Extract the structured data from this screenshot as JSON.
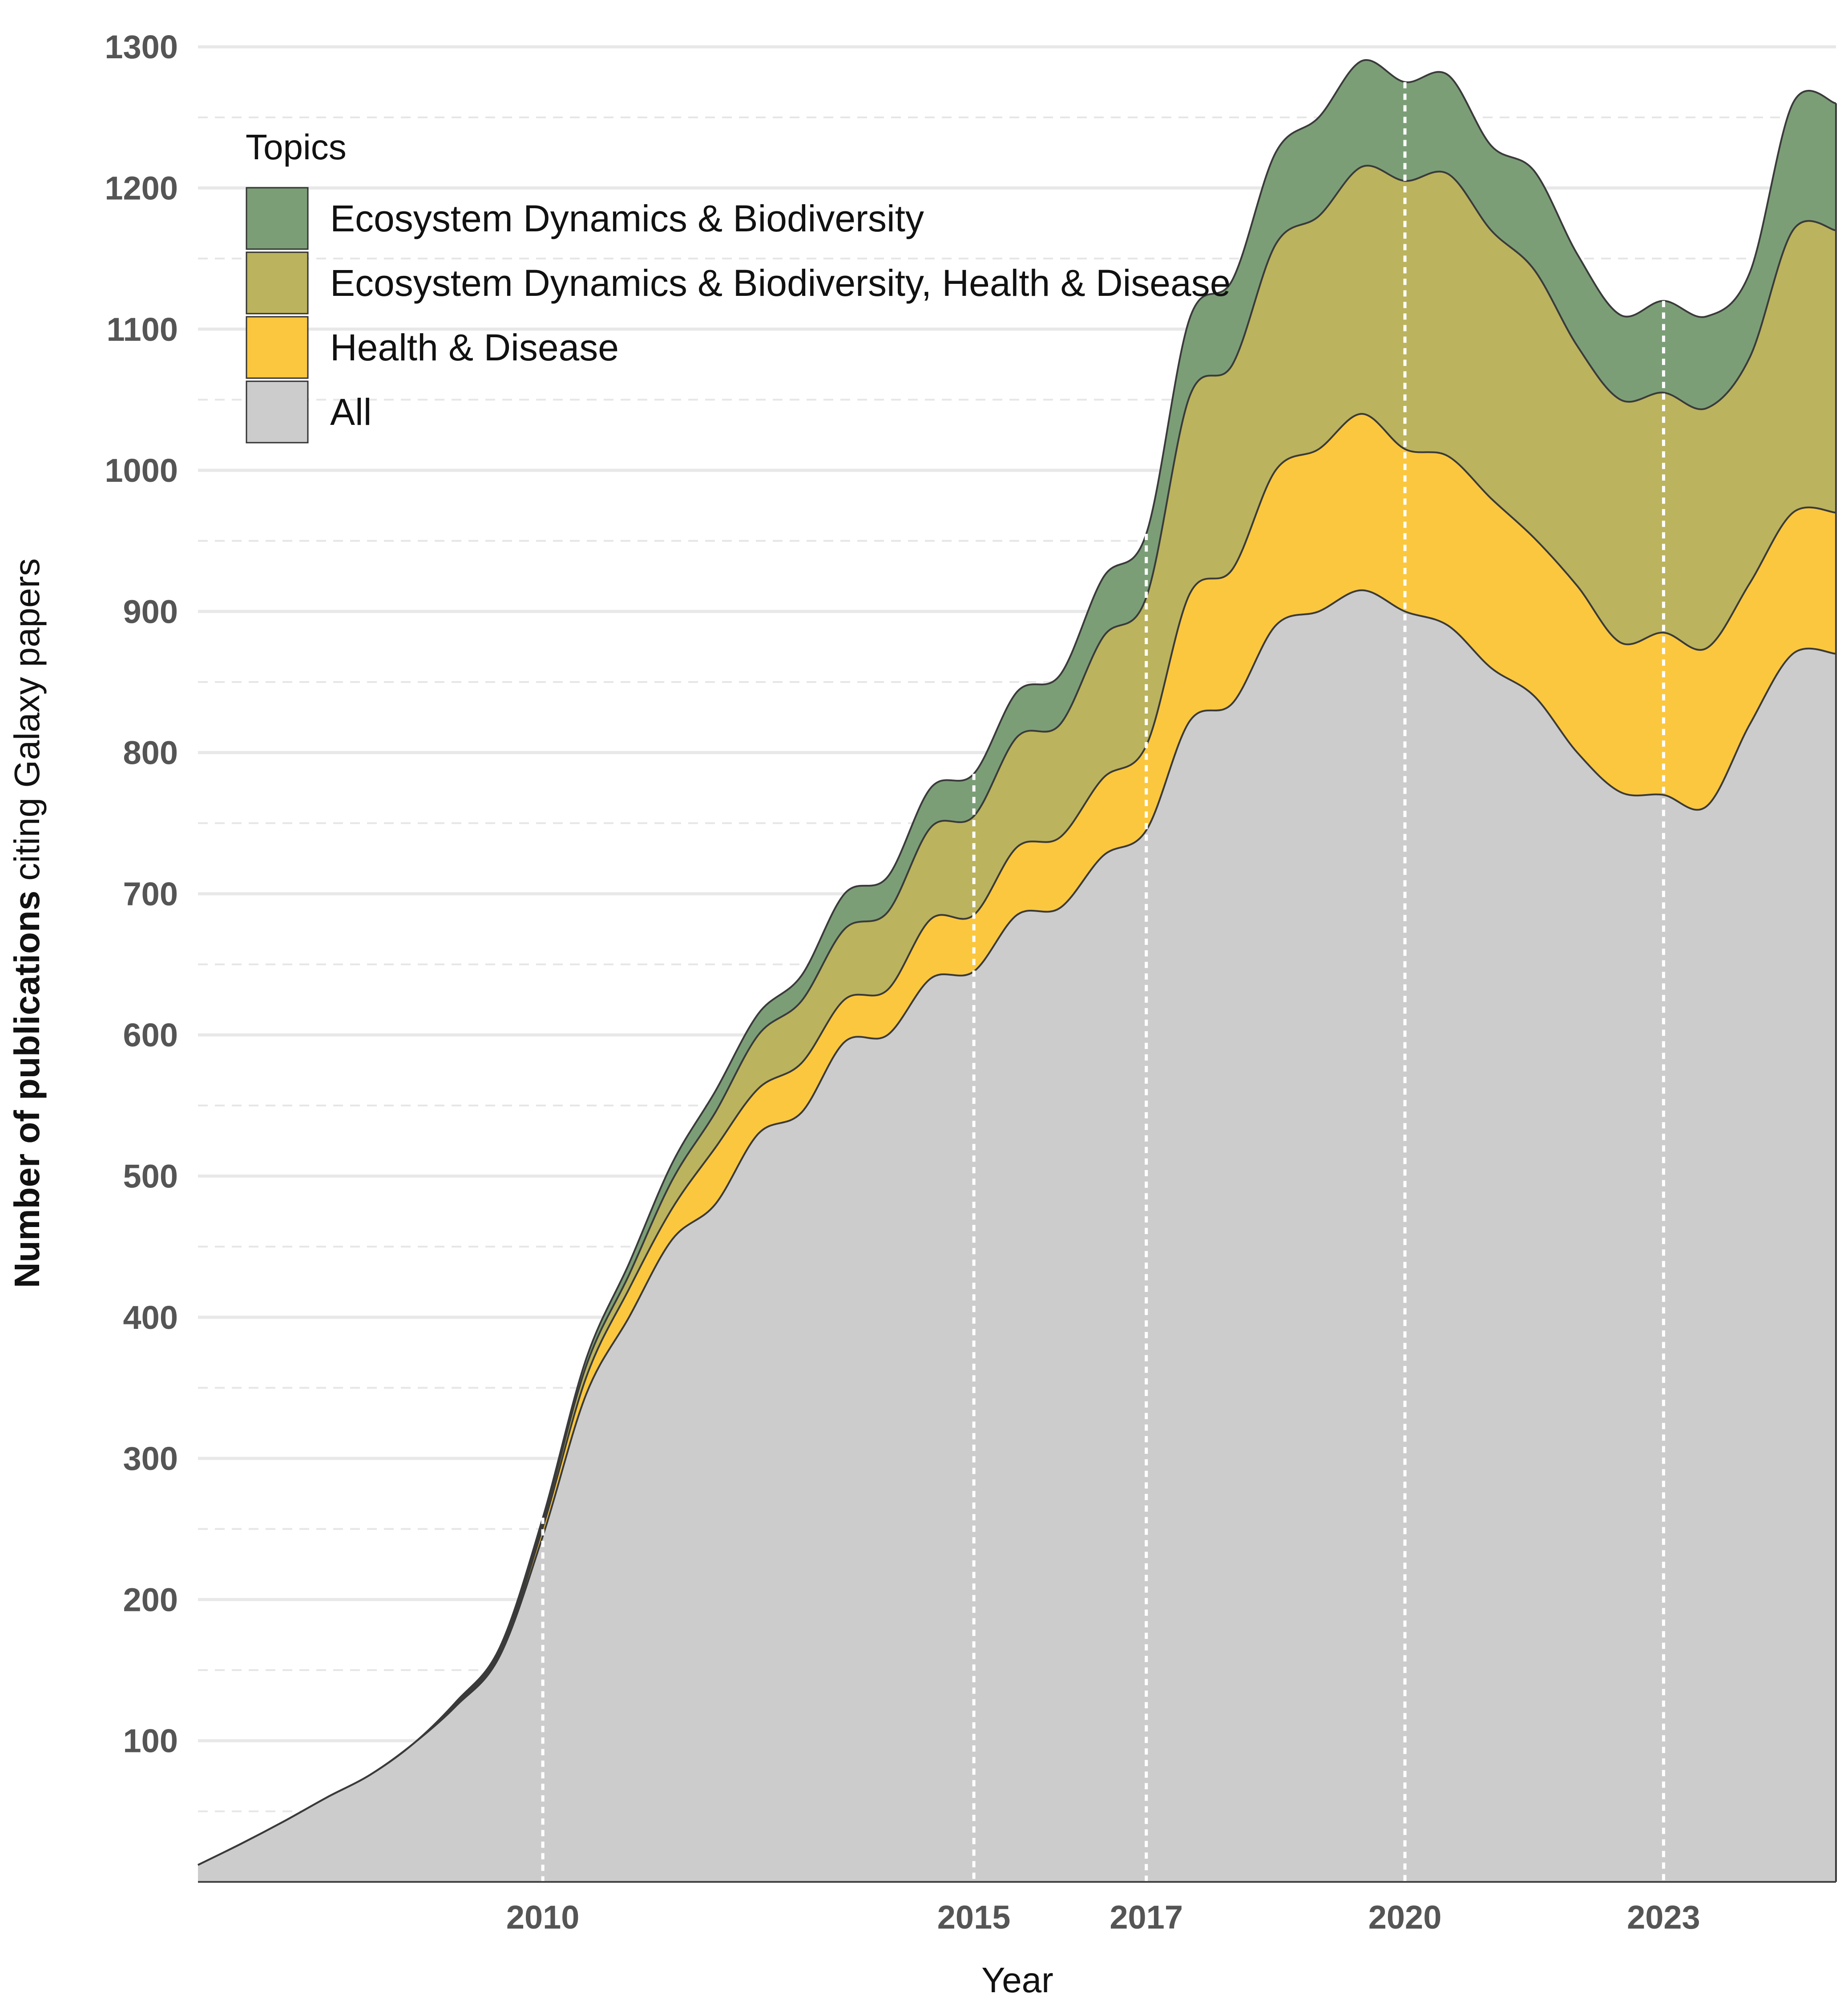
{
  "chart_data": {
    "type": "area",
    "stacked": true,
    "smoothed": true,
    "xlabel": "Year",
    "ylabel_bold": "Number of publications",
    "ylabel_rest": " citing Galaxy papers",
    "xlim": [
      2006,
      2025
    ],
    "ylim": [
      0,
      1330
    ],
    "yticks": [
      100,
      200,
      300,
      400,
      500,
      600,
      700,
      800,
      900,
      1000,
      1100,
      1200,
      1300
    ],
    "xticks": [
      2010,
      2015,
      2017,
      2020,
      2023
    ],
    "vlines": [
      2010,
      2015,
      2017,
      2020,
      2023
    ],
    "grid": true,
    "legend": {
      "title": "Topics",
      "placement": "top-left",
      "items": [
        {
          "label": "Ecosystem Dynamics & Biodiversity",
          "color": "#7b9e77"
        },
        {
          "label": "Ecosystem Dynamics & Biodiversity, Health & Disease",
          "color": "#bbb35e"
        },
        {
          "label": "Health & Disease",
          "color": "#fac73f"
        },
        {
          "label": "All",
          "color": "#cccccc"
        }
      ]
    },
    "x": [
      2006.0,
      2006.5,
      2007.0,
      2007.5,
      2008.0,
      2008.5,
      2009.0,
      2009.5,
      2010.0,
      2010.5,
      2011.0,
      2011.5,
      2012.0,
      2012.5,
      2013.0,
      2013.5,
      2014.0,
      2014.5,
      2015.0,
      2015.5,
      2016.0,
      2016.5,
      2017.0,
      2017.5,
      2018.0,
      2018.5,
      2019.0,
      2019.5,
      2020.0,
      2020.5,
      2021.0,
      2021.5,
      2022.0,
      2022.5,
      2023.0,
      2023.5,
      2024.0,
      2024.5,
      2025.0
    ],
    "series": [
      {
        "name": "All",
        "color": "#cccccc",
        "values": [
          12,
          27,
          43,
          60,
          76,
          98,
          125,
          160,
          245,
          345,
          400,
          455,
          480,
          530,
          545,
          595,
          600,
          640,
          645,
          685,
          690,
          727,
          745,
          822,
          835,
          890,
          900,
          915,
          900,
          890,
          860,
          840,
          800,
          772,
          770,
          762,
          820,
          870,
          870
        ]
      },
      {
        "name": "Health & Disease",
        "color": "#fac73f",
        "values": [
          0,
          0,
          0,
          0,
          0,
          0,
          1,
          2,
          6,
          12,
          20,
          22,
          40,
          32,
          35,
          30,
          32,
          42,
          40,
          48,
          50,
          55,
          60,
          90,
          95,
          110,
          115,
          125,
          115,
          120,
          120,
          112,
          118,
          106,
          115,
          112,
          100,
          100,
          100
        ]
      },
      {
        "name": "Ecosystem Dynamics & Biodiversity, Health & Disease",
        "color": "#bbb35e",
        "values": [
          0,
          0,
          0,
          0,
          0,
          0,
          1,
          2,
          4,
          8,
          10,
          20,
          25,
          38,
          44,
          50,
          55,
          65,
          70,
          78,
          80,
          100,
          105,
          140,
          145,
          160,
          165,
          175,
          190,
          200,
          190,
          190,
          170,
          172,
          170,
          170,
          160,
          200,
          200
        ]
      },
      {
        "name": "Ecosystem Dynamics & Biodiversity",
        "color": "#7b9e77",
        "values": [
          0,
          0,
          0,
          0,
          0,
          0,
          1,
          2,
          3,
          5,
          8,
          12,
          15,
          15,
          18,
          25,
          25,
          28,
          30,
          32,
          35,
          42,
          45,
          55,
          60,
          65,
          70,
          75,
          70,
          70,
          60,
          70,
          65,
          60,
          65,
          65,
          60,
          90,
          90
        ]
      }
    ]
  }
}
